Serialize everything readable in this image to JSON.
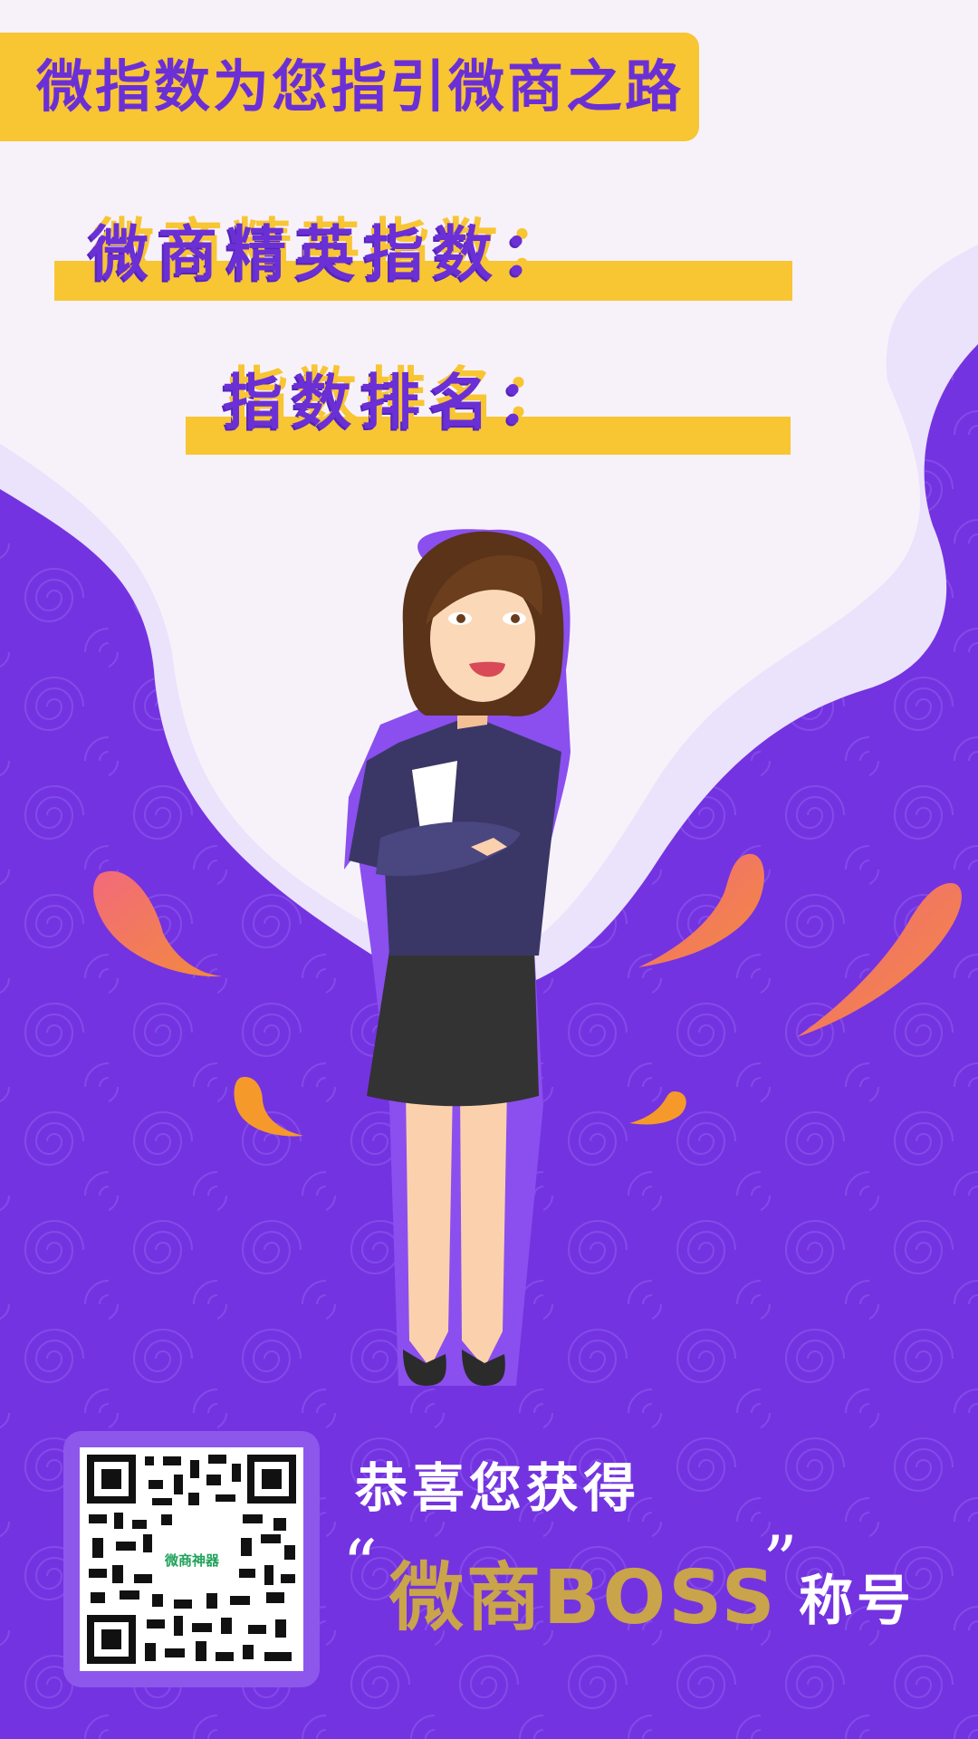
{
  "header": {
    "slogan": "微指数为您指引微商之路"
  },
  "fields": [
    {
      "label": "微商精英指数：",
      "value": ""
    },
    {
      "label": "指数排名：",
      "value": ""
    }
  ],
  "qr": {
    "logo_text": "微商神器"
  },
  "award": {
    "congrats": "恭喜您获得",
    "quote_open": "“",
    "title": "微商BOSS",
    "quote_close": "”",
    "suffix": "称号"
  },
  "colors": {
    "purple": "#6b2fd6",
    "deep_purple": "#7a36e6",
    "yellow": "#f8c533",
    "gold": "#c9a44a",
    "background": "#f7f2fa"
  }
}
